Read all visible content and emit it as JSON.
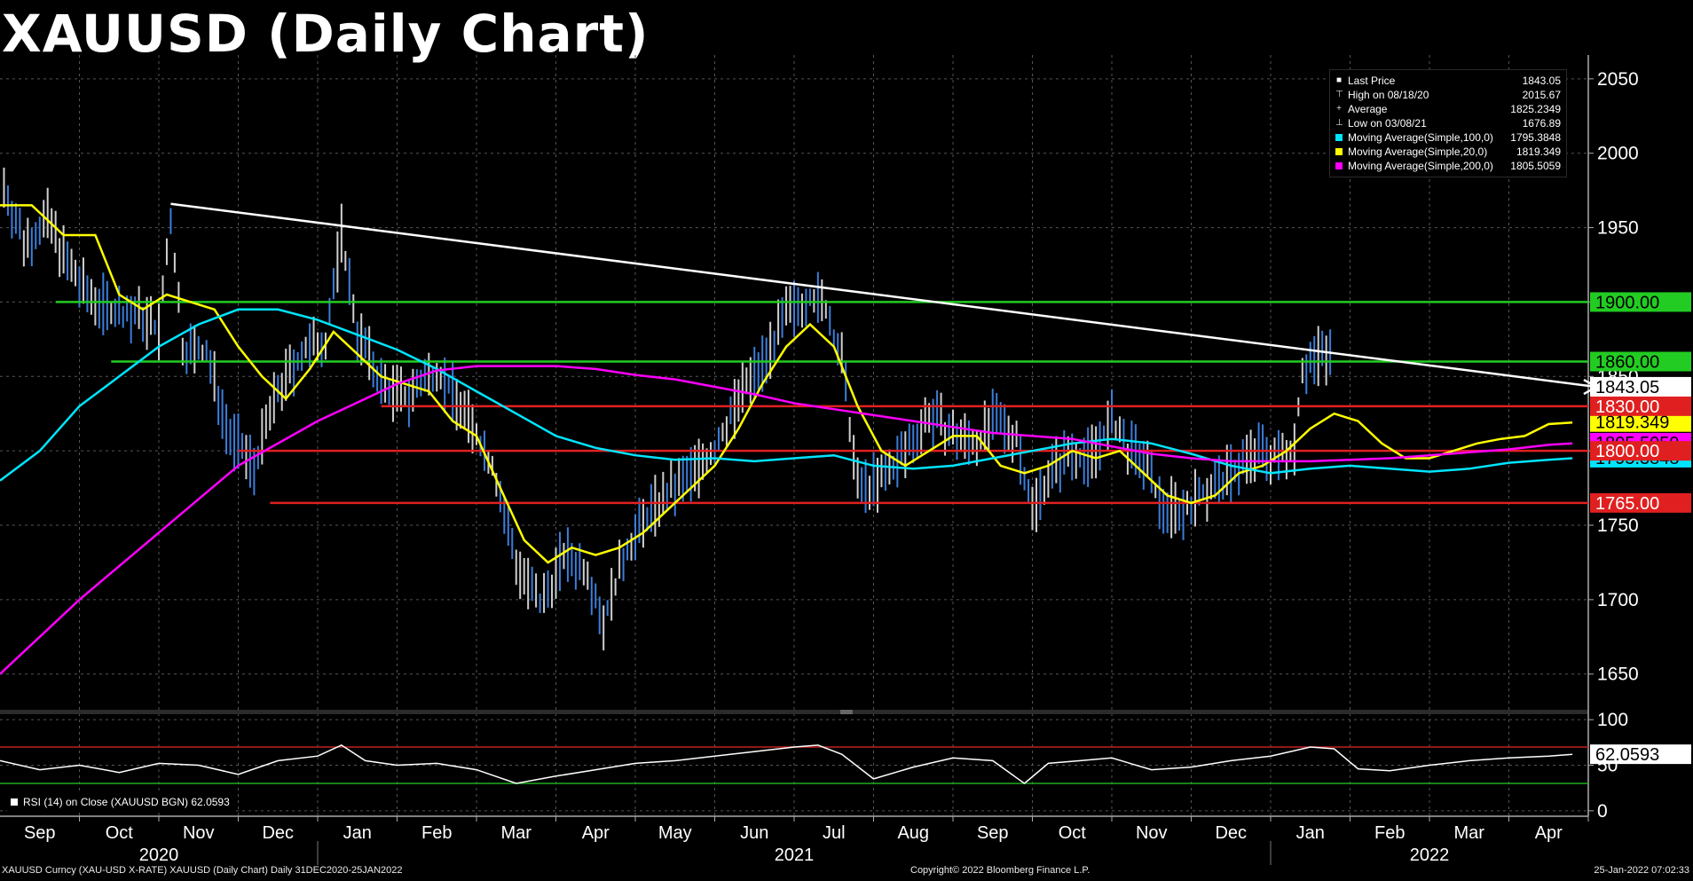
{
  "title": "XAUUSD (Daily Chart)",
  "legend": [
    {
      "glyph": "■",
      "color": "#ffffff",
      "name": "Last Price",
      "value": "1843.05"
    },
    {
      "glyph": "⊤",
      "color": "",
      "name": "High on 08/18/20",
      "value": "2015.67"
    },
    {
      "glyph": "+",
      "color": "",
      "name": "Average",
      "value": "1825.2349"
    },
    {
      "glyph": "⊥",
      "color": "",
      "name": "Low on 03/08/21",
      "value": "1676.89"
    },
    {
      "glyph": "",
      "color": "#00e5ff",
      "name": "Moving Average(Simple,100,0)",
      "value": "1795.3848"
    },
    {
      "glyph": "",
      "color": "#ffff00",
      "name": "Moving Average(Simple,20,0)",
      "value": "1819.349"
    },
    {
      "glyph": "",
      "color": "#ff00ff",
      "name": "Moving Average(Simple,200,0)",
      "value": "1805.5059"
    }
  ],
  "rsi_label": "RSI (14)   on Close (XAUUSD BGN) 62.0593",
  "footer": {
    "left": "XAUUSD Curncy (XAU-USD X-RATE) XAUUSD (Daily Chart)  Daily 31DEC2020-25JAN2022",
    "center": "Copyright© 2022 Bloomberg Finance L.P.",
    "right": "25-Jan-2022 07:02:33"
  },
  "chart_data": {
    "type": "line",
    "title": "XAUUSD (Daily Chart)",
    "price_axis": {
      "ticks": [
        2050,
        2000,
        1950,
        1900,
        1850,
        1800,
        1750,
        1700,
        1650
      ],
      "range": [
        1626,
        2066
      ]
    },
    "rsi_axis": {
      "ticks": [
        100,
        50,
        0
      ],
      "range": [
        -6,
        106
      ],
      "overbought": 70,
      "oversold": 30
    },
    "month_labels": [
      "Sep",
      "Oct",
      "Nov",
      "Dec",
      "Jan",
      "Feb",
      "Mar",
      "Apr",
      "May",
      "Jun",
      "Jul",
      "Aug",
      "Sep",
      "Oct",
      "Nov",
      "Dec",
      "Jan",
      "Feb",
      "Mar",
      "Apr"
    ],
    "year_labels": [
      "2020",
      "2021",
      "2022"
    ],
    "months_in_view": 20,
    "data_months": 16.8,
    "price_series": [
      {
        "name": "Last Price",
        "color": "#ffffff",
        "values": [
          [
            0,
            1985
          ],
          [
            0.3,
            1940
          ],
          [
            0.6,
            1955
          ],
          [
            0.9,
            1920
          ],
          [
            1.1,
            1905
          ],
          [
            1.4,
            1895
          ],
          [
            1.8,
            1890
          ],
          [
            2.0,
            1880
          ],
          [
            2.15,
            1955
          ],
          [
            2.3,
            1870
          ],
          [
            2.6,
            1865
          ],
          [
            2.9,
            1810
          ],
          [
            3.2,
            1790
          ],
          [
            3.5,
            1840
          ],
          [
            3.8,
            1865
          ],
          [
            4.1,
            1875
          ],
          [
            4.3,
            1945
          ],
          [
            4.5,
            1880
          ],
          [
            4.8,
            1845
          ],
          [
            5.1,
            1835
          ],
          [
            5.5,
            1855
          ],
          [
            5.8,
            1830
          ],
          [
            6.2,
            1790
          ],
          [
            6.5,
            1725
          ],
          [
            6.8,
            1695
          ],
          [
            7.1,
            1730
          ],
          [
            7.4,
            1720
          ],
          [
            7.6,
            1685
          ],
          [
            7.9,
            1735
          ],
          [
            8.2,
            1760
          ],
          [
            8.5,
            1775
          ],
          [
            8.8,
            1790
          ],
          [
            9.0,
            1800
          ],
          [
            9.3,
            1835
          ],
          [
            9.6,
            1860
          ],
          [
            9.9,
            1890
          ],
          [
            10.2,
            1905
          ],
          [
            10.4,
            1895
          ],
          [
            10.6,
            1860
          ],
          [
            10.8,
            1775
          ],
          [
            11.1,
            1780
          ],
          [
            11.4,
            1800
          ],
          [
            11.7,
            1825
          ],
          [
            12.0,
            1810
          ],
          [
            12.3,
            1805
          ],
          [
            12.5,
            1820
          ],
          [
            12.8,
            1810
          ],
          [
            13.0,
            1760
          ],
          [
            13.2,
            1785
          ],
          [
            13.5,
            1800
          ],
          [
            13.7,
            1795
          ],
          [
            14.0,
            1820
          ],
          [
            14.2,
            1800
          ],
          [
            14.4,
            1795
          ],
          [
            14.6,
            1765
          ],
          [
            14.9,
            1760
          ],
          [
            15.1,
            1770
          ],
          [
            15.4,
            1780
          ],
          [
            15.7,
            1795
          ],
          [
            15.9,
            1800
          ],
          [
            16.1,
            1795
          ],
          [
            16.3,
            1805
          ],
          [
            16.4,
            1855
          ],
          [
            16.6,
            1865
          ],
          [
            16.8,
            1865
          ],
          [
            17.0,
            1795
          ],
          [
            17.3,
            1790
          ],
          [
            17.6,
            1780
          ],
          [
            17.9,
            1785
          ],
          [
            18.2,
            1800
          ],
          [
            18.5,
            1810
          ],
          [
            18.8,
            1815
          ],
          [
            19.0,
            1820
          ],
          [
            19.2,
            1830
          ],
          [
            19.4,
            1820
          ],
          [
            19.6,
            1828
          ],
          [
            19.8,
            1843
          ]
        ]
      },
      {
        "name": "Moving Average(Simple,20,0)",
        "color": "#ffff00",
        "values": [
          [
            0,
            1965
          ],
          [
            0.4,
            1965
          ],
          [
            0.8,
            1945
          ],
          [
            1.2,
            1945
          ],
          [
            1.5,
            1905
          ],
          [
            1.8,
            1895
          ],
          [
            2.1,
            1905
          ],
          [
            2.4,
            1900
          ],
          [
            2.7,
            1895
          ],
          [
            3.0,
            1870
          ],
          [
            3.3,
            1850
          ],
          [
            3.6,
            1835
          ],
          [
            3.9,
            1855
          ],
          [
            4.2,
            1880
          ],
          [
            4.5,
            1865
          ],
          [
            4.8,
            1850
          ],
          [
            5.1,
            1845
          ],
          [
            5.4,
            1840
          ],
          [
            5.7,
            1820
          ],
          [
            6.0,
            1810
          ],
          [
            6.3,
            1775
          ],
          [
            6.6,
            1740
          ],
          [
            6.9,
            1725
          ],
          [
            7.2,
            1735
          ],
          [
            7.5,
            1730
          ],
          [
            7.8,
            1735
          ],
          [
            8.1,
            1745
          ],
          [
            8.4,
            1760
          ],
          [
            8.7,
            1775
          ],
          [
            9.0,
            1790
          ],
          [
            9.3,
            1815
          ],
          [
            9.6,
            1845
          ],
          [
            9.9,
            1870
          ],
          [
            10.2,
            1885
          ],
          [
            10.5,
            1870
          ],
          [
            10.8,
            1830
          ],
          [
            11.1,
            1800
          ],
          [
            11.4,
            1790
          ],
          [
            11.7,
            1800
          ],
          [
            12.0,
            1810
          ],
          [
            12.3,
            1810
          ],
          [
            12.6,
            1790
          ],
          [
            12.9,
            1785
          ],
          [
            13.2,
            1790
          ],
          [
            13.5,
            1800
          ],
          [
            13.8,
            1795
          ],
          [
            14.1,
            1800
          ],
          [
            14.4,
            1785
          ],
          [
            14.7,
            1770
          ],
          [
            15.0,
            1765
          ],
          [
            15.3,
            1770
          ],
          [
            15.6,
            1785
          ],
          [
            15.9,
            1790
          ],
          [
            16.2,
            1800
          ],
          [
            16.5,
            1815
          ],
          [
            16.8,
            1825
          ],
          [
            17.1,
            1820
          ],
          [
            17.4,
            1805
          ],
          [
            17.7,
            1795
          ],
          [
            18.0,
            1795
          ],
          [
            18.3,
            1800
          ],
          [
            18.6,
            1805
          ],
          [
            18.9,
            1808
          ],
          [
            19.2,
            1810
          ],
          [
            19.5,
            1818
          ],
          [
            19.8,
            1819
          ]
        ]
      },
      {
        "name": "Moving Average(Simple,100,0)",
        "color": "#00e5ff",
        "values": [
          [
            0,
            1780
          ],
          [
            0.5,
            1800
          ],
          [
            1.0,
            1830
          ],
          [
            1.5,
            1850
          ],
          [
            2.0,
            1870
          ],
          [
            2.5,
            1885
          ],
          [
            3.0,
            1895
          ],
          [
            3.5,
            1895
          ],
          [
            4.0,
            1888
          ],
          [
            4.5,
            1878
          ],
          [
            5.0,
            1868
          ],
          [
            5.5,
            1855
          ],
          [
            6.0,
            1840
          ],
          [
            6.5,
            1825
          ],
          [
            7.0,
            1810
          ],
          [
            7.5,
            1802
          ],
          [
            8.0,
            1797
          ],
          [
            8.5,
            1794
          ],
          [
            9.0,
            1795
          ],
          [
            9.5,
            1793
          ],
          [
            10.0,
            1795
          ],
          [
            10.5,
            1797
          ],
          [
            11.0,
            1790
          ],
          [
            11.5,
            1788
          ],
          [
            12.0,
            1790
          ],
          [
            12.5,
            1795
          ],
          [
            13.0,
            1800
          ],
          [
            13.5,
            1805
          ],
          [
            14.0,
            1808
          ],
          [
            14.5,
            1805
          ],
          [
            15.0,
            1798
          ],
          [
            15.5,
            1790
          ],
          [
            16.0,
            1785
          ],
          [
            16.5,
            1788
          ],
          [
            17.0,
            1790
          ],
          [
            17.5,
            1788
          ],
          [
            18.0,
            1786
          ],
          [
            18.5,
            1788
          ],
          [
            19.0,
            1792
          ],
          [
            19.5,
            1794
          ],
          [
            19.8,
            1795
          ]
        ]
      },
      {
        "name": "Moving Average(Simple,200,0)",
        "color": "#ff00ff",
        "values": [
          [
            0,
            1650
          ],
          [
            1.0,
            1700
          ],
          [
            2.0,
            1745
          ],
          [
            3.0,
            1790
          ],
          [
            4.0,
            1820
          ],
          [
            5.0,
            1845
          ],
          [
            5.5,
            1854
          ],
          [
            6.0,
            1857
          ],
          [
            6.5,
            1857
          ],
          [
            7.0,
            1857
          ],
          [
            7.5,
            1855
          ],
          [
            8.0,
            1851
          ],
          [
            8.5,
            1848
          ],
          [
            9.0,
            1843
          ],
          [
            9.5,
            1838
          ],
          [
            10.0,
            1832
          ],
          [
            10.5,
            1828
          ],
          [
            11.0,
            1824
          ],
          [
            11.5,
            1820
          ],
          [
            12.0,
            1816
          ],
          [
            12.5,
            1812
          ],
          [
            13.0,
            1810
          ],
          [
            13.5,
            1808
          ],
          [
            14.0,
            1803
          ],
          [
            14.5,
            1798
          ],
          [
            15.0,
            1795
          ],
          [
            15.5,
            1793
          ],
          [
            16.0,
            1793
          ],
          [
            16.5,
            1793
          ],
          [
            17.0,
            1794
          ],
          [
            17.5,
            1795
          ],
          [
            18.0,
            1797
          ],
          [
            18.5,
            1799
          ],
          [
            19.0,
            1801
          ],
          [
            19.5,
            1804
          ],
          [
            19.8,
            1805
          ]
        ]
      }
    ],
    "trendline": {
      "color": "#ffffff",
      "from": [
        2.15,
        1966
      ],
      "to": [
        19.8,
        1846
      ]
    },
    "trend_arrow": {
      "color": "#ffffff",
      "to": [
        20.1,
        1843
      ]
    },
    "horizontal_levels": [
      {
        "value": 1900,
        "label": "1900.00",
        "color": "#22cc22",
        "from": 0.7
      },
      {
        "value": 1860,
        "label": "1860.00",
        "color": "#22cc22",
        "from": 1.4
      },
      {
        "value": 1830,
        "label": "1830.00",
        "color": "#e02020",
        "from": 4.8
      },
      {
        "value": 1800,
        "label": "1800.00",
        "color": "#e02020",
        "from": 3.0
      },
      {
        "value": 1765,
        "label": "1765.00",
        "color": "#e02020",
        "from": 3.4
      }
    ],
    "value_tags": [
      {
        "value": 1843.05,
        "label": "1843.05",
        "bg": "#ffffff",
        "fg": "#000000"
      },
      {
        "value": 1819.349,
        "label": "1819.349",
        "bg": "#ffff00",
        "fg": "#000000"
      },
      {
        "value": 1805.5059,
        "label": "1805.5059",
        "bg": "#ff00ff",
        "fg": "#000000"
      },
      {
        "value": 1795.3848,
        "label": "1795.3848",
        "bg": "#00e5ff",
        "fg": "#000000"
      }
    ],
    "rsi_series": {
      "name": "RSI (14)",
      "color": "#ffffff",
      "values": [
        [
          0,
          55
        ],
        [
          0.5,
          45
        ],
        [
          1.0,
          50
        ],
        [
          1.5,
          42
        ],
        [
          2.0,
          52
        ],
        [
          2.5,
          50
        ],
        [
          3.0,
          40
        ],
        [
          3.5,
          55
        ],
        [
          4.0,
          60
        ],
        [
          4.3,
          72
        ],
        [
          4.6,
          55
        ],
        [
          5.0,
          50
        ],
        [
          5.5,
          52
        ],
        [
          6.0,
          45
        ],
        [
          6.5,
          30
        ],
        [
          7.0,
          38
        ],
        [
          7.5,
          45
        ],
        [
          8.0,
          52
        ],
        [
          8.5,
          55
        ],
        [
          9.0,
          60
        ],
        [
          9.5,
          65
        ],
        [
          10.0,
          70
        ],
        [
          10.3,
          72
        ],
        [
          10.6,
          62
        ],
        [
          11.0,
          35
        ],
        [
          11.5,
          48
        ],
        [
          12.0,
          58
        ],
        [
          12.5,
          55
        ],
        [
          12.9,
          30
        ],
        [
          13.2,
          52
        ],
        [
          13.6,
          55
        ],
        [
          14.0,
          58
        ],
        [
          14.5,
          45
        ],
        [
          15.0,
          48
        ],
        [
          15.5,
          55
        ],
        [
          16.0,
          60
        ],
        [
          16.5,
          70
        ],
        [
          16.8,
          68
        ],
        [
          17.1,
          46
        ],
        [
          17.5,
          44
        ],
        [
          18.0,
          50
        ],
        [
          18.5,
          55
        ],
        [
          19.0,
          58
        ],
        [
          19.5,
          60
        ],
        [
          19.8,
          62
        ]
      ]
    },
    "rsi_value_tag": {
      "value": 62.0593,
      "label": "62.0593"
    }
  }
}
